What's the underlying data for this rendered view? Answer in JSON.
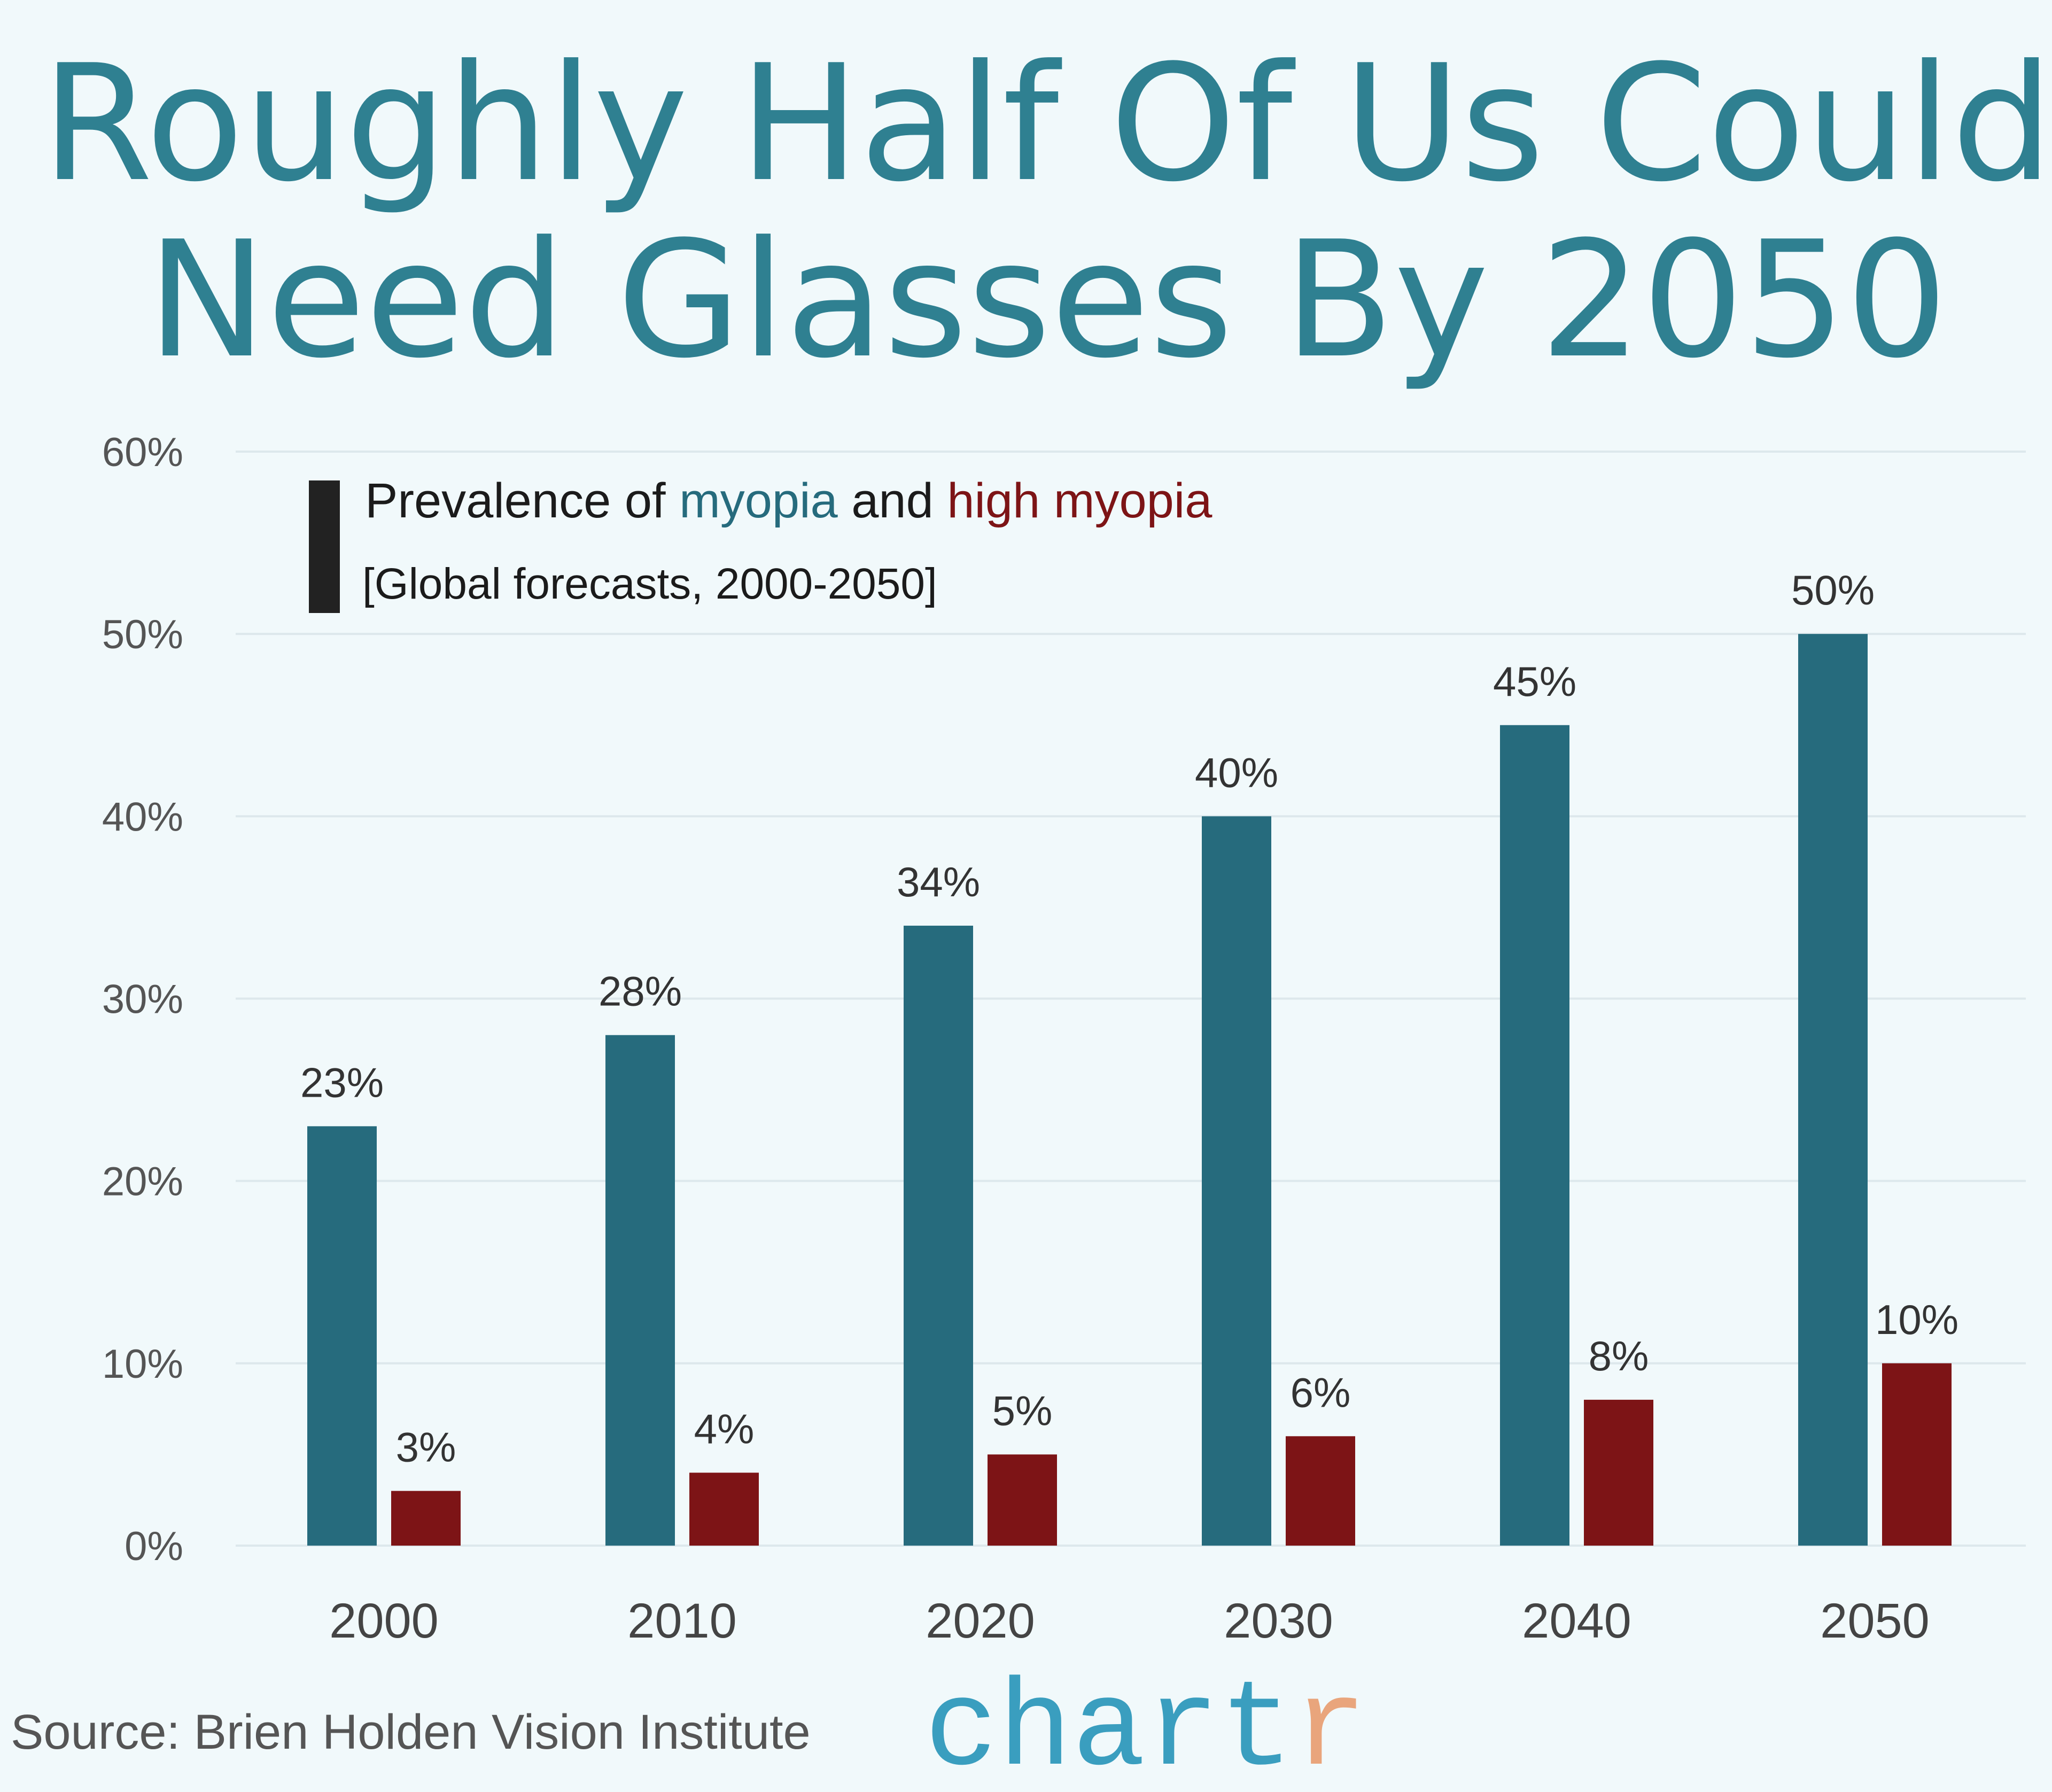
{
  "title": {
    "line1": "Roughly Half Of Us Could",
    "line2": "Need Glasses By 2050"
  },
  "legend": {
    "prefix": "Prevalence of ",
    "series1": "myopia",
    "middle": " and ",
    "series2": "high myopia",
    "subtitle": "[Global forecasts, 2000-2050]"
  },
  "source": "Source:  Brien Holden Vision Institute",
  "logo": {
    "main": "chart",
    "accent": "r",
    "main_color": "#3a9ebf",
    "accent_color": "#e9a57c"
  },
  "colors": {
    "background": "#f1f9fb",
    "myopia": "#266b7d",
    "high_myopia": "#7d1416",
    "title": "#2f8091"
  },
  "chart_data": {
    "type": "bar",
    "categories": [
      "2000",
      "2010",
      "2020",
      "2030",
      "2040",
      "2050"
    ],
    "series": [
      {
        "name": "myopia",
        "values": [
          23,
          28,
          34,
          40,
          45,
          50
        ],
        "labels": [
          "23%",
          "28%",
          "34%",
          "40%",
          "45%",
          "50%"
        ]
      },
      {
        "name": "high myopia",
        "values": [
          3,
          4,
          5,
          6,
          8,
          10
        ],
        "labels": [
          "3%",
          "4%",
          "5%",
          "6%",
          "8%",
          "10%"
        ]
      }
    ],
    "ylim": [
      0,
      60
    ],
    "yticks": [
      "0%",
      "10%",
      "20%",
      "30%",
      "40%",
      "50%",
      "60%"
    ],
    "grid": true,
    "legend_placement": "top-left"
  }
}
